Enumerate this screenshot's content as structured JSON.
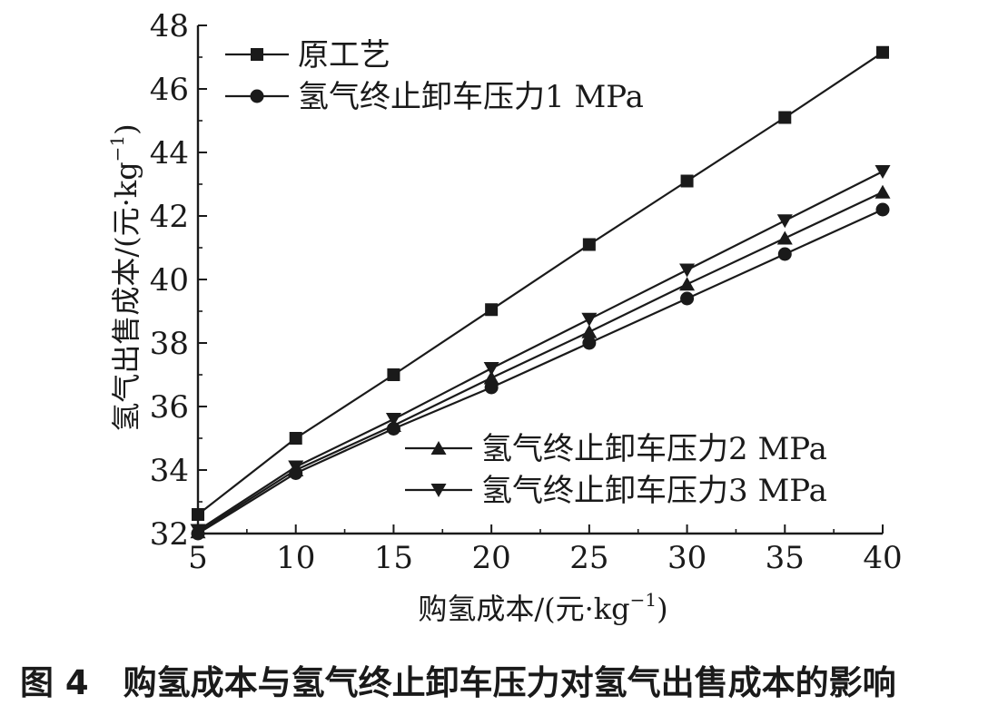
{
  "chart_data": {
    "type": "line",
    "xlabel": "购氢成本/(元·kg",
    "xlabel_sup": "−1",
    "xlabel_close": ")",
    "ylabel": "氢气出售成本/(元·kg",
    "ylabel_sup": "−1",
    "ylabel_close": ")",
    "xlim": [
      5,
      40
    ],
    "ylim": [
      32,
      48
    ],
    "x_ticks": [
      5,
      10,
      15,
      20,
      25,
      30,
      35,
      40
    ],
    "y_ticks": [
      32,
      34,
      36,
      38,
      40,
      42,
      44,
      46,
      48
    ],
    "x_tick_labels": [
      "5",
      "10",
      "15",
      "20",
      "25",
      "30",
      "35",
      "40"
    ],
    "y_tick_labels": [
      "32",
      "34",
      "36",
      "38",
      "40",
      "42",
      "44",
      "46",
      "48"
    ],
    "x": [
      5,
      10,
      15,
      20,
      25,
      30,
      35,
      40
    ],
    "series": [
      {
        "name": "原工艺",
        "marker": "square",
        "values": [
          32.6,
          35.0,
          37.0,
          39.05,
          41.1,
          43.1,
          45.1,
          47.15
        ]
      },
      {
        "name": "氢气终止卸车压力1 MPa",
        "marker": "circle",
        "values": [
          32.0,
          33.9,
          35.3,
          36.6,
          38.0,
          39.4,
          40.8,
          42.2
        ]
      },
      {
        "name": "氢气终止卸车压力2 MPa",
        "marker": "triangle-up",
        "values": [
          32.05,
          34.0,
          35.4,
          36.9,
          38.35,
          39.85,
          41.3,
          42.75
        ]
      },
      {
        "name": "氢气终止卸车压力3 MPa",
        "marker": "triangle-down",
        "values": [
          32.1,
          34.1,
          35.6,
          37.2,
          38.75,
          40.3,
          41.85,
          43.4
        ]
      }
    ],
    "grid": false,
    "legend_placement": "top-left and bottom-right"
  },
  "caption": {
    "figure_number": "图 4",
    "text": "购氢成本与氢气终止卸车压力对氢气出售成本的影响"
  }
}
